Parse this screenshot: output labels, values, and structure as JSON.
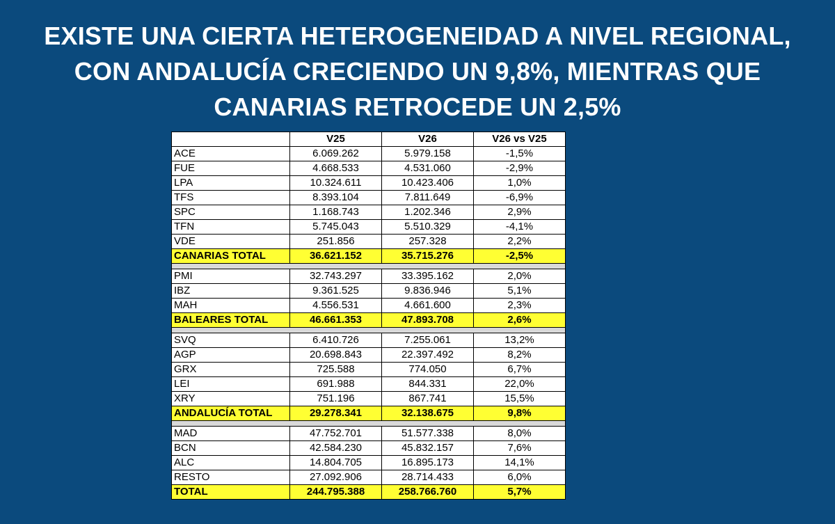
{
  "title": {
    "line1": "EXISTE UNA CIERTA HETEROGENEIDAD A NIVEL REGIONAL,",
    "line2": "CON ANDALUCÍA CRECIENDO UN 9,8%, MIENTRAS QUE",
    "line3": "CANARIAS RETROCEDE UN 2,5%"
  },
  "table": {
    "headers": [
      "",
      "V25",
      "V26",
      "V26 vs V25"
    ],
    "rows": [
      {
        "type": "row",
        "name": "ACE",
        "v25": "6.069.262",
        "v26": "5.979.158",
        "var": "-1,5%"
      },
      {
        "type": "row",
        "name": "FUE",
        "v25": "4.668.533",
        "v26": "4.531.060",
        "var": "-2,9%"
      },
      {
        "type": "row",
        "name": "LPA",
        "v25": "10.324.611",
        "v26": "10.423.406",
        "var": "1,0%"
      },
      {
        "type": "row",
        "name": "TFS",
        "v25": "8.393.104",
        "v26": "7.811.649",
        "var": "-6,9%"
      },
      {
        "type": "row",
        "name": "SPC",
        "v25": "1.168.743",
        "v26": "1.202.346",
        "var": "2,9%"
      },
      {
        "type": "row",
        "name": "TFN",
        "v25": "5.745.043",
        "v26": "5.510.329",
        "var": "-4,1%"
      },
      {
        "type": "row",
        "name": "VDE",
        "v25": "251.856",
        "v26": "257.328",
        "var": "2,2%"
      },
      {
        "type": "total",
        "name": "CANARIAS TOTAL",
        "v25": "36.621.152",
        "v26": "35.715.276",
        "var": "-2,5%"
      },
      {
        "type": "spacer"
      },
      {
        "type": "row",
        "name": "PMI",
        "v25": "32.743.297",
        "v26": "33.395.162",
        "var": "2,0%"
      },
      {
        "type": "row",
        "name": "IBZ",
        "v25": "9.361.525",
        "v26": "9.836.946",
        "var": "5,1%"
      },
      {
        "type": "row",
        "name": "MAH",
        "v25": "4.556.531",
        "v26": "4.661.600",
        "var": "2,3%"
      },
      {
        "type": "total",
        "name": "BALEARES TOTAL",
        "v25": "46.661.353",
        "v26": "47.893.708",
        "var": "2,6%"
      },
      {
        "type": "spacer"
      },
      {
        "type": "row",
        "name": "SVQ",
        "v25": "6.410.726",
        "v26": "7.255.061",
        "var": "13,2%"
      },
      {
        "type": "row",
        "name": "AGP",
        "v25": "20.698.843",
        "v26": "22.397.492",
        "var": "8,2%"
      },
      {
        "type": "row",
        "name": "GRX",
        "v25": "725.588",
        "v26": "774.050",
        "var": "6,7%"
      },
      {
        "type": "row",
        "name": "LEI",
        "v25": "691.988",
        "v26": "844.331",
        "var": "22,0%"
      },
      {
        "type": "row",
        "name": "XRY",
        "v25": "751.196",
        "v26": "867.741",
        "var": "15,5%"
      },
      {
        "type": "total",
        "name": "ANDALUCÍA TOTAL",
        "v25": "29.278.341",
        "v26": "32.138.675",
        "var": "9,8%"
      },
      {
        "type": "spacer"
      },
      {
        "type": "row",
        "name": "MAD",
        "v25": "47.752.701",
        "v26": "51.577.338",
        "var": "8,0%"
      },
      {
        "type": "row",
        "name": "BCN",
        "v25": "42.584.230",
        "v26": "45.832.157",
        "var": "7,6%"
      },
      {
        "type": "row",
        "name": "ALC",
        "v25": "14.804.705",
        "v26": "16.895.173",
        "var": "14,1%"
      },
      {
        "type": "row",
        "name": "RESTO",
        "v25": "27.092.906",
        "v26": "28.714.433",
        "var": "6,0%"
      },
      {
        "type": "total",
        "name": "TOTAL",
        "v25": "244.795.388",
        "v26": "258.766.760",
        "var": "5,7%"
      }
    ]
  },
  "colors": {
    "background": "#0b4a7d",
    "title_text": "#ffffff",
    "total_highlight": "#ffff33",
    "spacer": "#d9d9d9"
  }
}
